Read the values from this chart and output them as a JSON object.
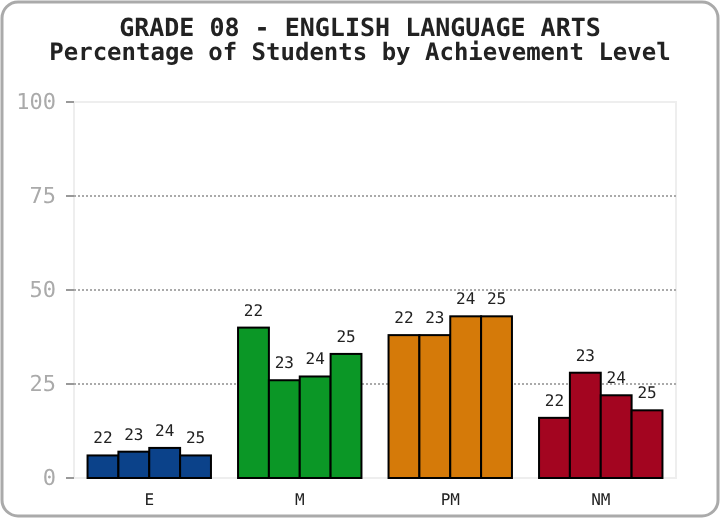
{
  "chart_data": {
    "type": "bar",
    "title": "GRADE 08 - ENGLISH LANGUAGE ARTS",
    "subtitle": "Percentage of Students by Achievement Level",
    "categories": [
      "E",
      "M",
      "PM",
      "NM"
    ],
    "series": [
      {
        "name": "22",
        "colors": [
          "#0b428a",
          "#0b9726",
          "#d57a09",
          "#a30520"
        ],
        "values": [
          6,
          40,
          38,
          16
        ]
      },
      {
        "name": "23",
        "colors": [
          "#0b428a",
          "#0b9726",
          "#d57a09",
          "#a30520"
        ],
        "values": [
          7,
          26,
          38,
          28
        ]
      },
      {
        "name": "24",
        "colors": [
          "#0b428a",
          "#0b9726",
          "#d57a09",
          "#a30520"
        ],
        "values": [
          8,
          27,
          43,
          22
        ]
      },
      {
        "name": "25",
        "colors": [
          "#0b428a",
          "#0b9726",
          "#d57a09",
          "#a30520"
        ],
        "values": [
          6,
          33,
          43,
          18
        ]
      }
    ],
    "ylim": [
      0,
      100
    ],
    "yticks": [
      0,
      25,
      50,
      75,
      100
    ],
    "grid": "y"
  }
}
